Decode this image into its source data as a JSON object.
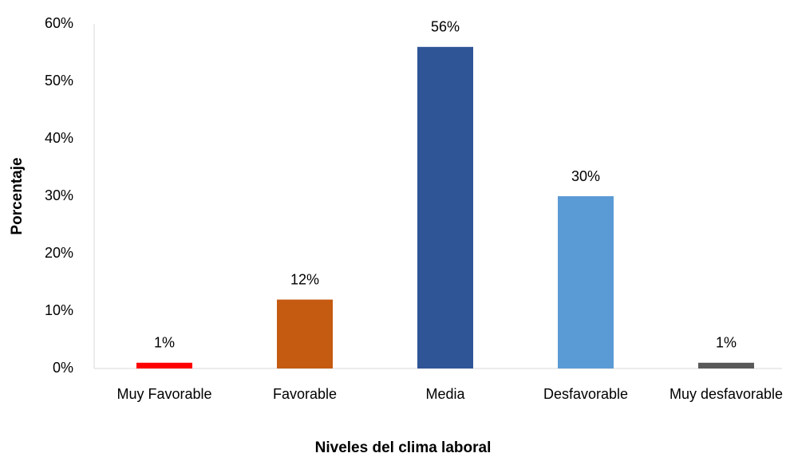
{
  "chart_data": {
    "type": "bar",
    "x_label": "Niveles del clima laboral",
    "y_label": "Porcentaje",
    "categories": [
      "Muy Favorable",
      "Favorable",
      "Media",
      "Desfavorable",
      "Muy desfavorable"
    ],
    "values": [
      1,
      12,
      56,
      30,
      1
    ],
    "value_labels": [
      "1%",
      "12%",
      "56%",
      "30%",
      "1%"
    ],
    "colors": [
      "#ff0000",
      "#c55a11",
      "#2f5597",
      "#5b9bd5",
      "#595959"
    ],
    "ylim": [
      0,
      60
    ],
    "yticks": [
      {
        "value": 0,
        "label": "0%"
      },
      {
        "value": 10,
        "label": "10%"
      },
      {
        "value": 20,
        "label": "20%"
      },
      {
        "value": 30,
        "label": "30%"
      },
      {
        "value": 40,
        "label": "40%"
      },
      {
        "value": 50,
        "label": "50%"
      },
      {
        "value": 60,
        "label": "60%"
      }
    ],
    "grid": false
  }
}
